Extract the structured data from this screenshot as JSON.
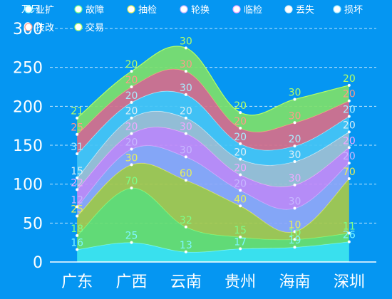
{
  "chart_data": {
    "type": "area",
    "stacked": true,
    "smooth": true,
    "unit_label": "万只",
    "categories": [
      "广东",
      "广西",
      "云南",
      "贵州",
      "海南",
      "深圳"
    ],
    "ylim": [
      0,
      300
    ],
    "yticks": [
      0,
      50,
      100,
      150,
      200,
      250,
      300
    ],
    "grid": true,
    "legend_position": "top-left",
    "series": [
      {
        "name": "业扩",
        "values": [
          16,
          25,
          13,
          17,
          19,
          26
        ],
        "color": "#3ee6ee",
        "label_color": "#7ef7ff"
      },
      {
        "name": "故障",
        "values": [
          18,
          70,
          32,
          15,
          10,
          11
        ],
        "color": "#69e06c",
        "label_color": "#7dff8a"
      },
      {
        "name": "抽检",
        "values": [
          25,
          30,
          60,
          40,
          10,
          70
        ],
        "color": "#a7c94a",
        "label_color": "#e6ef5c"
      },
      {
        "name": "轮换",
        "values": [
          12,
          20,
          30,
          20,
          30,
          20
        ],
        "color": "#8fa7f7",
        "label_color": "#c7b7ff"
      },
      {
        "name": "临检",
        "values": [
          22,
          20,
          30,
          20,
          30,
          20
        ],
        "color": "#c48bf7",
        "label_color": "#f0a9ff"
      },
      {
        "name": "丢失",
        "values": [
          15,
          20,
          20,
          20,
          30,
          20
        ],
        "color": "#9ec0d4",
        "label_color": "#d8eef7"
      },
      {
        "name": "损坏",
        "values": [
          31,
          20,
          30,
          20,
          20,
          20
        ],
        "color": "#45c4f5",
        "label_color": "#a9ecff"
      },
      {
        "name": "技改",
        "values": [
          25,
          20,
          30,
          20,
          30,
          20
        ],
        "color": "#d86f8a",
        "label_color": "#ff9a8a"
      },
      {
        "name": "交易",
        "values": [
          21,
          20,
          30,
          20,
          30,
          20
        ],
        "color": "#7ee06a",
        "label_color": "#b4ff66"
      }
    ]
  }
}
